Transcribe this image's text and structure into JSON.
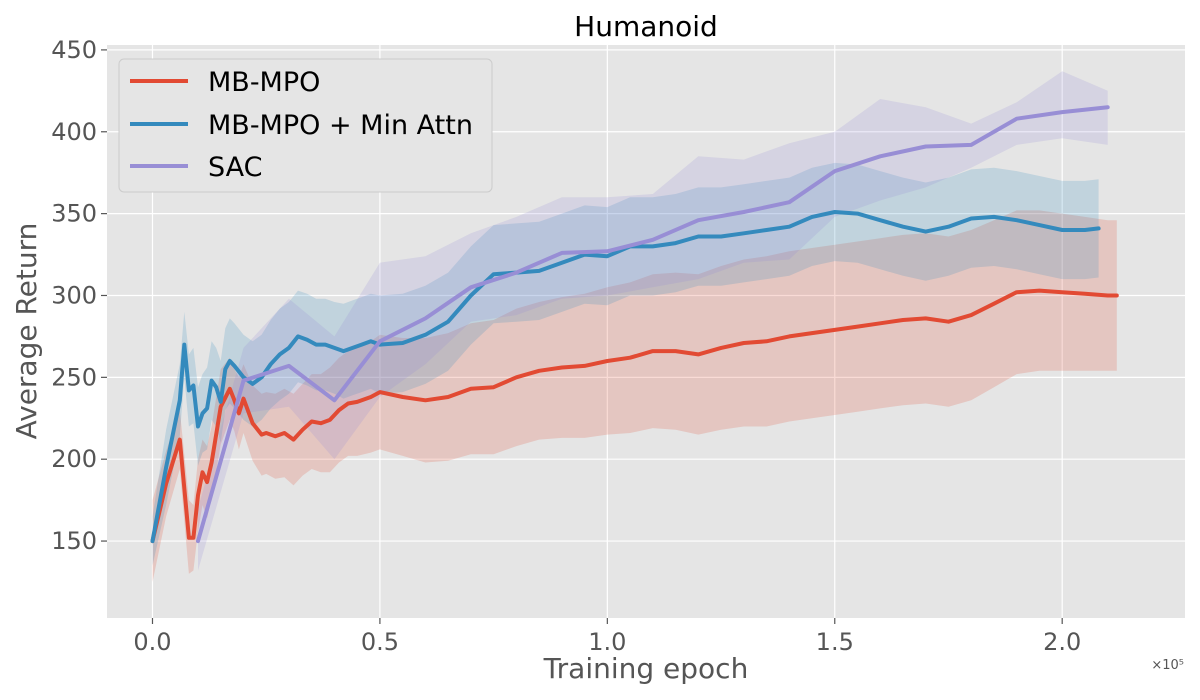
{
  "chart_data": {
    "type": "line",
    "title": "Humanoid",
    "xlabel": "Training epoch",
    "ylabel": "Average Return",
    "x_multiplier": "×10⁵",
    "xlim": [
      -0.1,
      2.27
    ],
    "ylim": [
      103,
      453
    ],
    "x_ticks": [
      0.0,
      0.5,
      1.0,
      1.5,
      2.0
    ],
    "x_tick_labels": [
      "0.0",
      "0.5",
      "1.0",
      "1.5",
      "2.0"
    ],
    "y_ticks": [
      150,
      200,
      250,
      300,
      350,
      400,
      450
    ],
    "y_tick_labels": [
      "150",
      "200",
      "250",
      "300",
      "350",
      "400",
      "450"
    ],
    "legend_location": "top-left",
    "grid": true,
    "background": "#e5e5e5",
    "series": [
      {
        "name": "MB-MPO",
        "color": "#e24a33",
        "x": [
          0.0,
          0.03,
          0.06,
          0.08,
          0.09,
          0.1,
          0.11,
          0.12,
          0.13,
          0.15,
          0.17,
          0.18,
          0.19,
          0.2,
          0.22,
          0.24,
          0.25,
          0.27,
          0.29,
          0.31,
          0.33,
          0.35,
          0.37,
          0.39,
          0.41,
          0.43,
          0.45,
          0.48,
          0.5,
          0.55,
          0.6,
          0.65,
          0.7,
          0.75,
          0.8,
          0.85,
          0.9,
          0.95,
          1.0,
          1.05,
          1.1,
          1.15,
          1.2,
          1.25,
          1.3,
          1.35,
          1.4,
          1.45,
          1.5,
          1.55,
          1.6,
          1.65,
          1.7,
          1.75,
          1.8,
          1.85,
          1.9,
          1.95,
          2.0,
          2.05,
          2.1,
          2.12
        ],
        "y": [
          150,
          185,
          212,
          152,
          152,
          178,
          192,
          186,
          198,
          232,
          243,
          236,
          228,
          237,
          222,
          215,
          216,
          214,
          216,
          212,
          218,
          223,
          222,
          224,
          230,
          234,
          235,
          238,
          241,
          238,
          236,
          238,
          243,
          244,
          250,
          254,
          256,
          257,
          260,
          262,
          266,
          266,
          264,
          268,
          271,
          272,
          275,
          277,
          279,
          281,
          283,
          285,
          286,
          284,
          288,
          295,
          302,
          303,
          302,
          301,
          300,
          300
        ],
        "band_upper": [
          175,
          205,
          230,
          175,
          172,
          200,
          212,
          208,
          220,
          255,
          262,
          255,
          250,
          258,
          245,
          240,
          241,
          240,
          243,
          240,
          246,
          252,
          252,
          256,
          262,
          266,
          268,
          272,
          276,
          274,
          274,
          277,
          283,
          285,
          292,
          296,
          299,
          301,
          305,
          308,
          313,
          314,
          313,
          318,
          322,
          324,
          327,
          329,
          331,
          333,
          335,
          337,
          338,
          336,
          340,
          346,
          352,
          352,
          350,
          348,
          346,
          346
        ],
        "band_lower": [
          125,
          165,
          194,
          130,
          132,
          156,
          172,
          164,
          176,
          209,
          224,
          217,
          206,
          216,
          199,
          190,
          191,
          188,
          189,
          184,
          190,
          194,
          192,
          192,
          198,
          202,
          202,
          204,
          206,
          202,
          198,
          199,
          203,
          203,
          208,
          212,
          213,
          213,
          215,
          216,
          219,
          218,
          215,
          218,
          220,
          220,
          223,
          225,
          227,
          229,
          231,
          233,
          234,
          232,
          236,
          244,
          252,
          254,
          254,
          254,
          254,
          254
        ]
      },
      {
        "name": "MB-MPO + Min Attn",
        "color": "#348abd",
        "x": [
          0.0,
          0.03,
          0.06,
          0.07,
          0.08,
          0.09,
          0.1,
          0.11,
          0.12,
          0.13,
          0.14,
          0.15,
          0.16,
          0.17,
          0.18,
          0.2,
          0.22,
          0.24,
          0.26,
          0.28,
          0.3,
          0.32,
          0.34,
          0.36,
          0.38,
          0.4,
          0.42,
          0.44,
          0.46,
          0.48,
          0.5,
          0.55,
          0.6,
          0.65,
          0.7,
          0.75,
          0.8,
          0.85,
          0.9,
          0.95,
          1.0,
          1.05,
          1.1,
          1.15,
          1.2,
          1.25,
          1.3,
          1.35,
          1.4,
          1.45,
          1.5,
          1.55,
          1.6,
          1.65,
          1.7,
          1.75,
          1.8,
          1.85,
          1.9,
          1.95,
          2.0,
          2.05,
          2.08
        ],
        "y": [
          150,
          195,
          236,
          270,
          242,
          245,
          220,
          228,
          231,
          248,
          244,
          235,
          255,
          260,
          257,
          250,
          246,
          250,
          258,
          264,
          268,
          275,
          273,
          270,
          270,
          268,
          266,
          268,
          270,
          272,
          270,
          271,
          276,
          284,
          300,
          313,
          314,
          315,
          320,
          325,
          324,
          330,
          330,
          332,
          336,
          336,
          338,
          340,
          342,
          348,
          351,
          350,
          346,
          342,
          339,
          342,
          347,
          348,
          346,
          343,
          340,
          340,
          341
        ],
        "band_upper": [
          165,
          218,
          258,
          290,
          264,
          268,
          244,
          252,
          256,
          272,
          268,
          260,
          280,
          286,
          283,
          276,
          272,
          276,
          285,
          292,
          296,
          303,
          301,
          298,
          298,
          296,
          295,
          297,
          299,
          301,
          300,
          301,
          306,
          314,
          330,
          343,
          344,
          345,
          350,
          355,
          354,
          360,
          360,
          362,
          366,
          366,
          368,
          370,
          372,
          378,
          381,
          380,
          376,
          372,
          369,
          372,
          377,
          378,
          376,
          373,
          370,
          370,
          371
        ],
        "band_lower": [
          135,
          172,
          214,
          250,
          220,
          222,
          196,
          204,
          206,
          224,
          220,
          210,
          230,
          234,
          231,
          224,
          220,
          224,
          231,
          236,
          240,
          247,
          245,
          242,
          242,
          240,
          237,
          239,
          241,
          243,
          240,
          241,
          246,
          254,
          270,
          283,
          284,
          285,
          290,
          295,
          294,
          300,
          300,
          302,
          306,
          306,
          308,
          310,
          312,
          318,
          321,
          320,
          316,
          312,
          309,
          312,
          317,
          318,
          316,
          313,
          310,
          310,
          311
        ]
      },
      {
        "name": "SAC",
        "color": "#988ed5",
        "x": [
          0.1,
          0.2,
          0.3,
          0.4,
          0.5,
          0.6,
          0.7,
          0.8,
          0.9,
          1.0,
          1.1,
          1.2,
          1.3,
          1.4,
          1.5,
          1.6,
          1.7,
          1.8,
          1.9,
          2.0,
          2.1
        ],
        "y": [
          150,
          248,
          257,
          236,
          272,
          286,
          305,
          314,
          326,
          327,
          334,
          346,
          351,
          357,
          376,
          385,
          391,
          392,
          408,
          412,
          415
        ],
        "band_upper": [
          170,
          268,
          298,
          275,
          320,
          324,
          338,
          348,
          360,
          360,
          362,
          385,
          383,
          393,
          400,
          420,
          415,
          405,
          418,
          437,
          425
        ],
        "band_lower": [
          132,
          228,
          232,
          200,
          238,
          258,
          284,
          288,
          298,
          300,
          305,
          310,
          320,
          322,
          348,
          358,
          366,
          378,
          392,
          396,
          392
        ]
      }
    ]
  }
}
